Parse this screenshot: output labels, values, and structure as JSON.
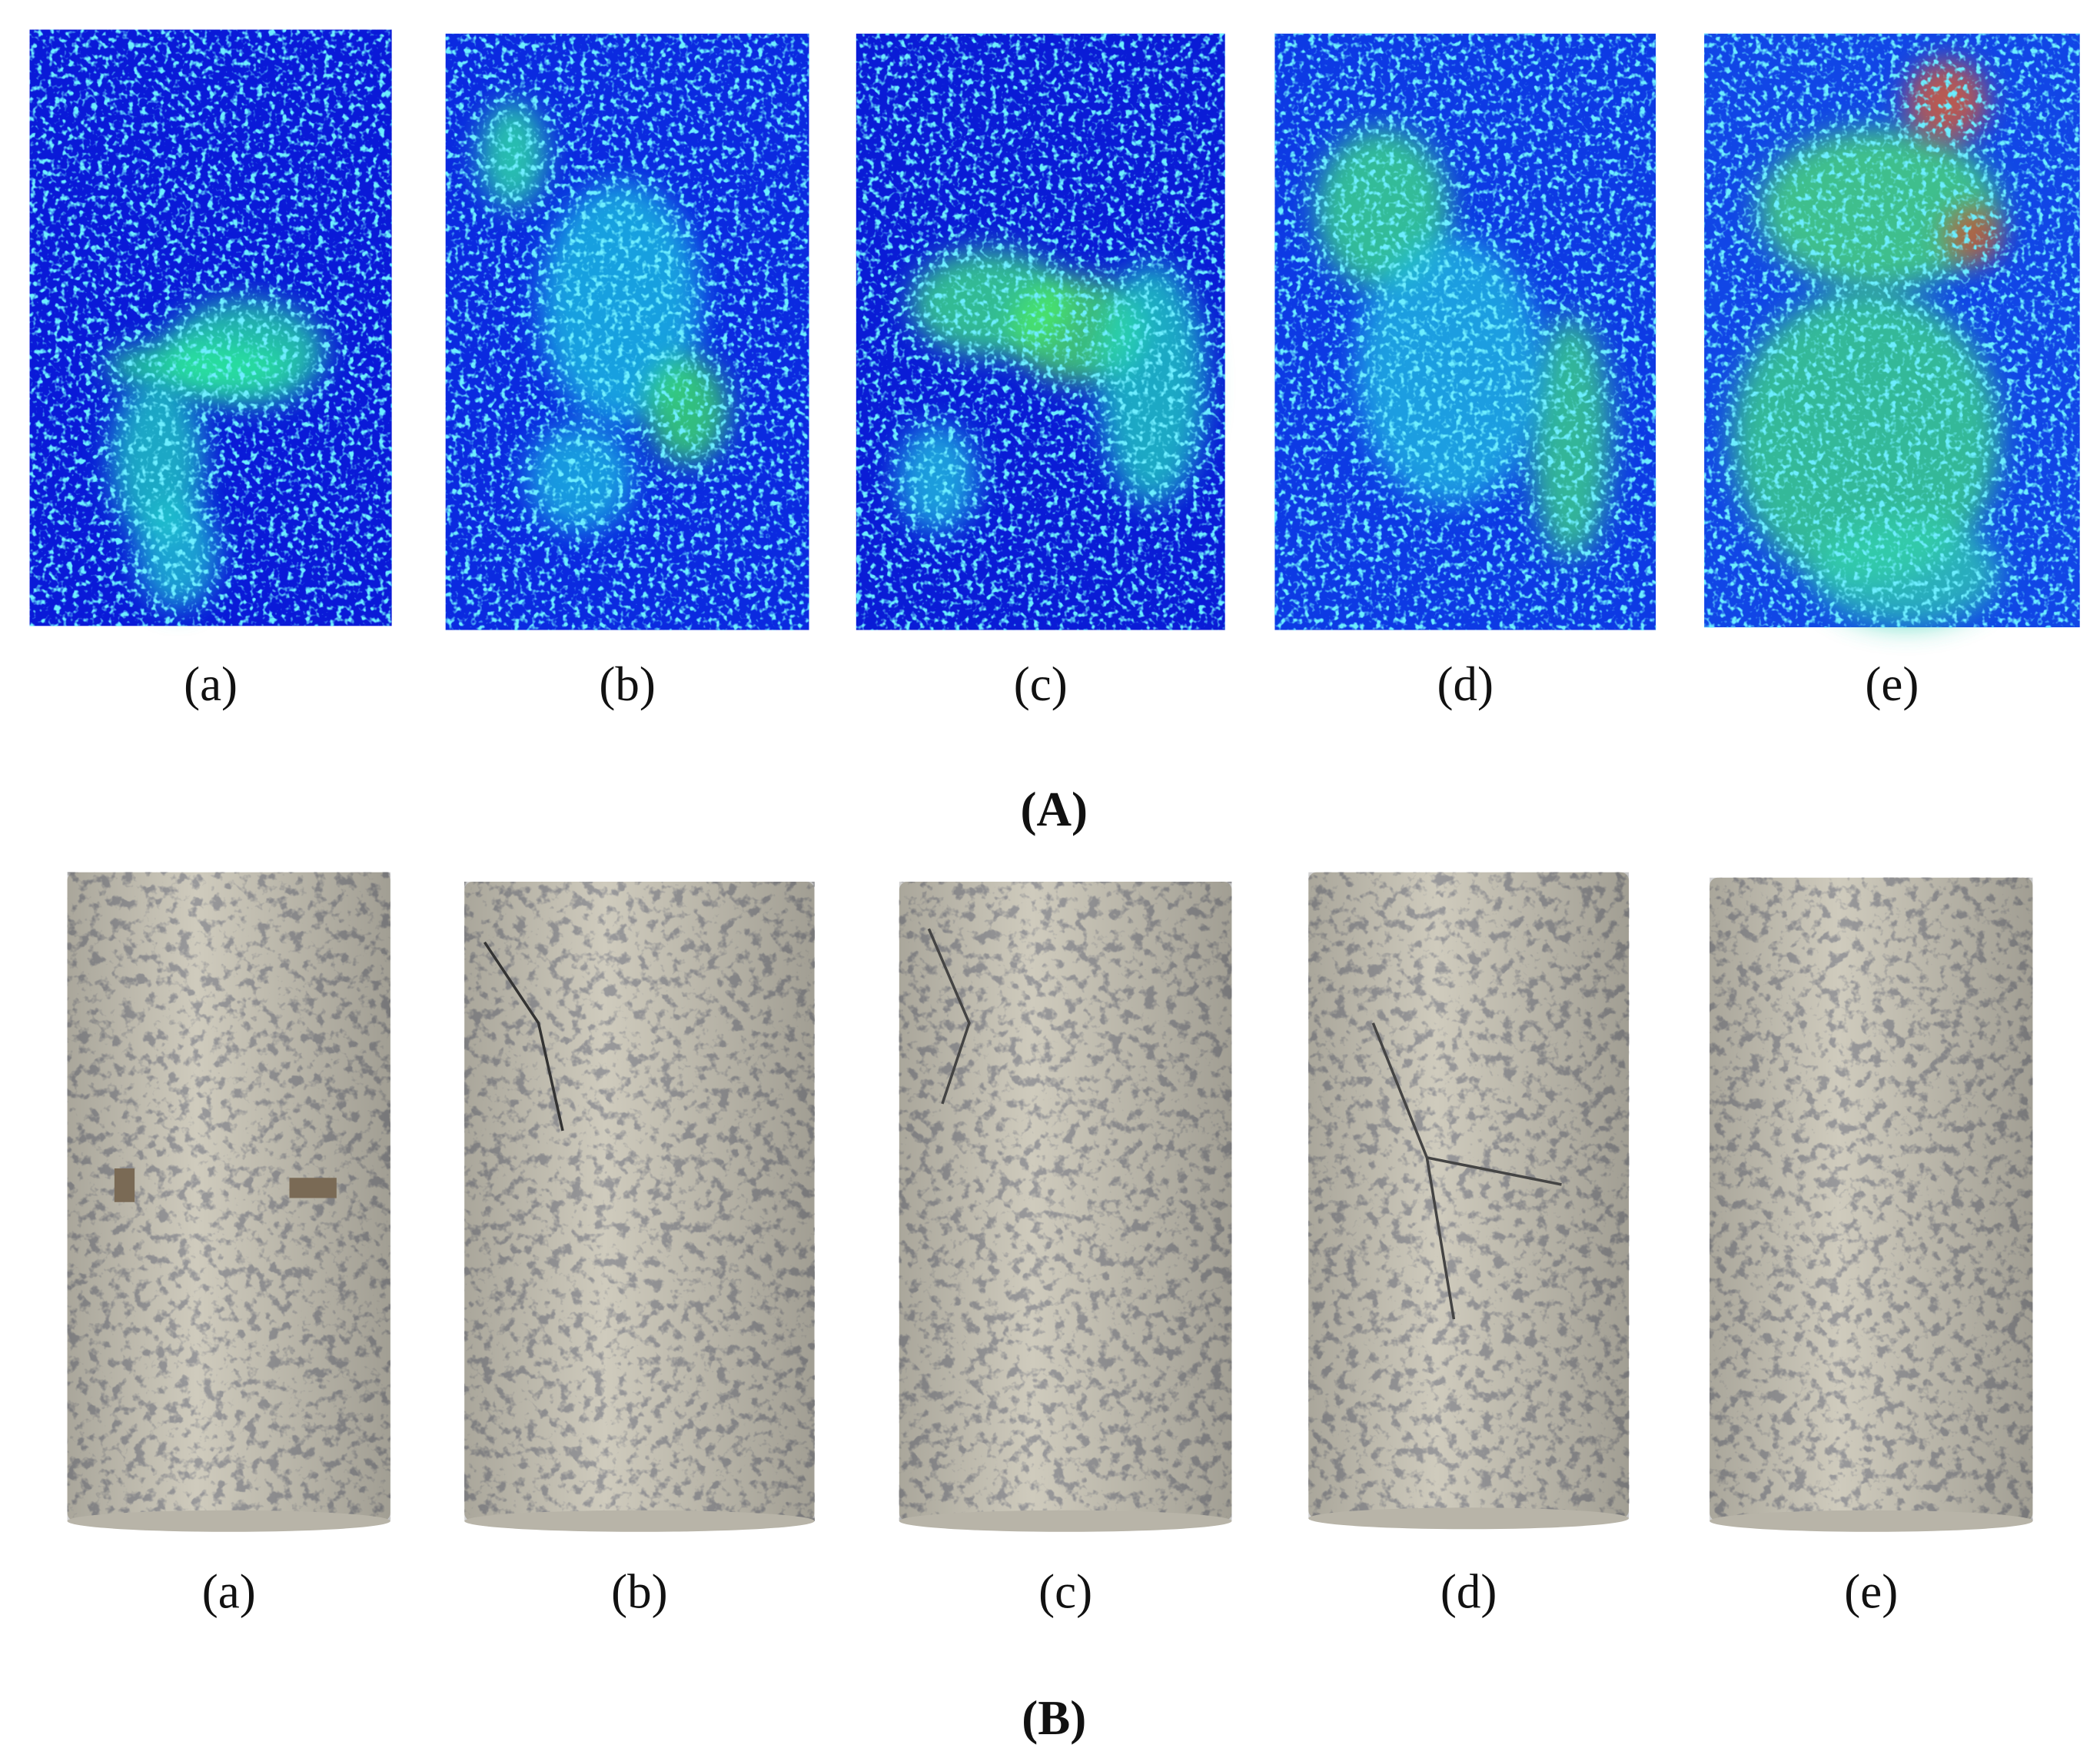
{
  "panels": [
    {
      "caption": "(A)",
      "items": [
        {
          "label": "(a)"
        },
        {
          "label": "(b)"
        },
        {
          "label": "(c)"
        },
        {
          "label": "(d)"
        },
        {
          "label": "(e)"
        }
      ]
    },
    {
      "caption": "(B)",
      "items": [
        {
          "label": "(a)"
        },
        {
          "label": "(b)"
        },
        {
          "label": "(c)"
        },
        {
          "label": "(d)"
        },
        {
          "label": "(e)"
        }
      ]
    }
  ]
}
